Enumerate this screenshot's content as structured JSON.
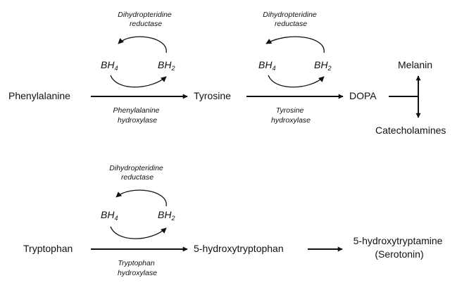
{
  "compounds": {
    "phenylalanine": "Phenylalanine",
    "tyrosine": "Tyrosine",
    "dopa": "DOPA",
    "melanin": "Melanin",
    "catecholamines": "Catecholamines",
    "tryptophan": "Tryptophan",
    "hydroxytryptophan": "5-hydroxytryptophan",
    "serotonin_line1": "5-hydroxytryptamine",
    "serotonin_line2": "(Serotonin)"
  },
  "cofactor": {
    "bh4_base": "BH",
    "bh4_sub": "4",
    "bh2_base": "BH",
    "bh2_sub": "2"
  },
  "enzymes": {
    "reductase_1": [
      "Dihydropteridine",
      "reductase"
    ],
    "reductase_2": [
      "Dihydropteridine",
      "reductase"
    ],
    "reductase_3": [
      "Dihydropteridine",
      "reductase"
    ],
    "phenylalanine_hydroxylase": [
      "Phenylalanine",
      "hydroxylase"
    ],
    "tyrosine_hydroxylase": [
      "Tyrosine",
      "hydroxylase"
    ],
    "tryptophan_hydroxylase": [
      "Tryptophan",
      "hydroxylase"
    ]
  }
}
